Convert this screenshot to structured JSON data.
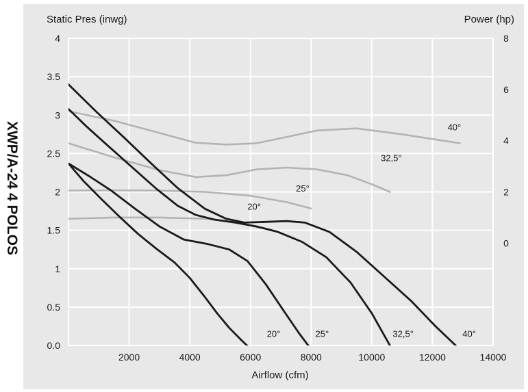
{
  "side_label": "XWP/A-24   4 POLOS",
  "chart_data": {
    "type": "line",
    "left_axis_title": "Static Pres (inwg)",
    "right_axis_title": "Power (hp)",
    "xlabel": "Airflow (cfm)",
    "xlim": [
      0,
      14000
    ],
    "ylim": [
      0,
      4
    ],
    "y2lim": [
      -4,
      8
    ],
    "x_ticks": [
      "2000",
      "4000",
      "6000",
      "8000",
      "10000",
      "12000",
      "14000"
    ],
    "y_ticks": [
      "0.0",
      "0.5",
      "1",
      "1.5",
      "2",
      "2.5",
      "3",
      "3.5",
      "4"
    ],
    "y2_ticks": [
      "0",
      "2",
      "4",
      "6",
      "8"
    ],
    "grid": true,
    "pressure_curves": [
      {
        "name": "20°",
        "x": [
          0,
          500,
          1100,
          1700,
          2300,
          2900,
          3500,
          4000,
          4500,
          4900,
          5300,
          5700,
          6100,
          6400
        ],
        "y": [
          2.37,
          2.14,
          1.9,
          1.67,
          1.45,
          1.26,
          1.08,
          0.88,
          0.63,
          0.42,
          0.23,
          0.07,
          -0.08,
          -0.2
        ]
      },
      {
        "name": "25°",
        "x": [
          0,
          700,
          1400,
          2200,
          3000,
          3800,
          4600,
          5300,
          5900,
          6500,
          7100,
          7600,
          8000
        ],
        "y": [
          2.37,
          2.2,
          2.02,
          1.78,
          1.55,
          1.38,
          1.32,
          1.25,
          1.1,
          0.8,
          0.45,
          0.16,
          -0.05
        ]
      },
      {
        "name": "32,5°",
        "x": [
          0,
          600,
          1300,
          2100,
          2900,
          3600,
          4200,
          4800,
          5500,
          6200,
          6900,
          7700,
          8500,
          9300,
          10000,
          10600
        ],
        "y": [
          3.08,
          2.85,
          2.6,
          2.32,
          2.04,
          1.82,
          1.7,
          1.64,
          1.6,
          1.55,
          1.48,
          1.35,
          1.15,
          0.82,
          0.42,
          0.0
        ]
      },
      {
        "name": "40°",
        "x": [
          0,
          900,
          1800,
          2700,
          3600,
          4500,
          5200,
          5800,
          6500,
          7200,
          7800,
          8600,
          9500,
          10400,
          11300,
          12100,
          12900
        ],
        "y": [
          3.4,
          3.05,
          2.72,
          2.38,
          2.05,
          1.78,
          1.65,
          1.6,
          1.61,
          1.62,
          1.6,
          1.48,
          1.22,
          0.9,
          0.58,
          0.25,
          -0.05
        ]
      }
    ],
    "power_curves": [
      {
        "name": "20°",
        "x": [
          0,
          1500,
          3000,
          4500,
          5500,
          6300
        ],
        "y": [
          0.95,
          1.0,
          1.0,
          0.95,
          0.82,
          0.6
        ]
      },
      {
        "name": "25°",
        "x": [
          0,
          1500,
          3000,
          4500,
          6000,
          7200,
          8000
        ],
        "y": [
          2.05,
          2.06,
          2.05,
          2.0,
          1.85,
          1.6,
          1.35
        ]
      },
      {
        "name": "32,5°",
        "x": [
          0,
          1500,
          3000,
          4200,
          5200,
          6200,
          7200,
          8200,
          9200,
          10000,
          10600
        ],
        "y": [
          3.9,
          3.35,
          2.85,
          2.58,
          2.65,
          2.88,
          2.95,
          2.88,
          2.65,
          2.3,
          2.0
        ]
      },
      {
        "name": "40°",
        "x": [
          0,
          1500,
          3000,
          4200,
          5200,
          6200,
          7200,
          8200,
          9500,
          11000,
          12900
        ],
        "y": [
          5.15,
          4.78,
          4.3,
          3.92,
          3.85,
          3.9,
          4.15,
          4.4,
          4.48,
          4.25,
          3.9
        ]
      }
    ],
    "pressure_curve_labels": [
      {
        "text": "20°",
        "x": 6450,
        "y": 0.06
      },
      {
        "text": "25°",
        "x": 8050,
        "y": 0.06
      },
      {
        "text": "32,5°",
        "x": 10600,
        "y": 0.06
      },
      {
        "text": "40°",
        "x": 12900,
        "y": 0.06
      }
    ],
    "power_curve_labels": [
      {
        "text": "20°",
        "x": 5900,
        "y": 1.2
      },
      {
        "text": "25°",
        "x": 7500,
        "y": 1.9
      },
      {
        "text": "32,5°",
        "x": 10300,
        "y": 3.1
      },
      {
        "text": "40°",
        "x": 12500,
        "y": 4.3
      }
    ],
    "colors": {
      "plot_background": "#e8e8e8",
      "grid": "#ffffff",
      "pressure_line": "#1a1a1a",
      "power_line": "#b3b3b3",
      "text": "#1a1a1a"
    }
  }
}
